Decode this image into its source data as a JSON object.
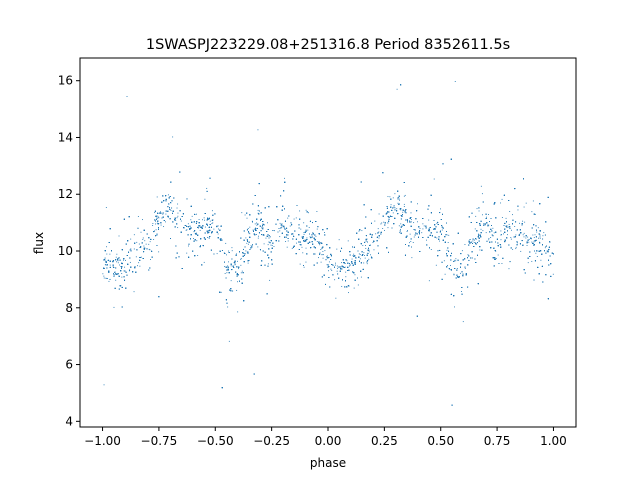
{
  "chart_data": {
    "type": "scatter",
    "title": "1SWASPJ223229.08+251316.8 Period 8352611.5s",
    "xlabel": "phase",
    "ylabel": "flux",
    "xlim": [
      -1.1,
      1.1
    ],
    "ylim": [
      3.8,
      16.8
    ],
    "xticks": [
      -1.0,
      -0.75,
      -0.5,
      -0.25,
      0.0,
      0.25,
      0.5,
      0.75,
      1.0
    ],
    "xtick_labels": [
      "−1.00",
      "−0.75",
      "−0.50",
      "−0.25",
      "0.00",
      "0.25",
      "0.50",
      "0.75",
      "1.00"
    ],
    "yticks": [
      4,
      6,
      8,
      10,
      12,
      14,
      16
    ],
    "ytick_labels": [
      "4",
      "6",
      "8",
      "10",
      "12",
      "14",
      "16"
    ],
    "grid": false,
    "marker_color": "#1f77b4",
    "trend": {
      "phase": [
        0.0,
        0.05,
        0.1,
        0.15,
        0.2,
        0.25,
        0.3,
        0.35,
        0.4,
        0.45,
        0.5,
        0.55,
        0.6,
        0.65,
        0.7,
        0.75,
        0.8,
        0.85,
        0.9,
        0.95,
        1.0
      ],
      "flux": [
        9.7,
        9.4,
        9.6,
        9.9,
        10.3,
        11.0,
        11.6,
        11.0,
        10.6,
        10.8,
        10.9,
        9.5,
        9.2,
        10.4,
        11.0,
        10.2,
        10.9,
        10.6,
        10.5,
        10.3,
        9.7
      ]
    }
  }
}
